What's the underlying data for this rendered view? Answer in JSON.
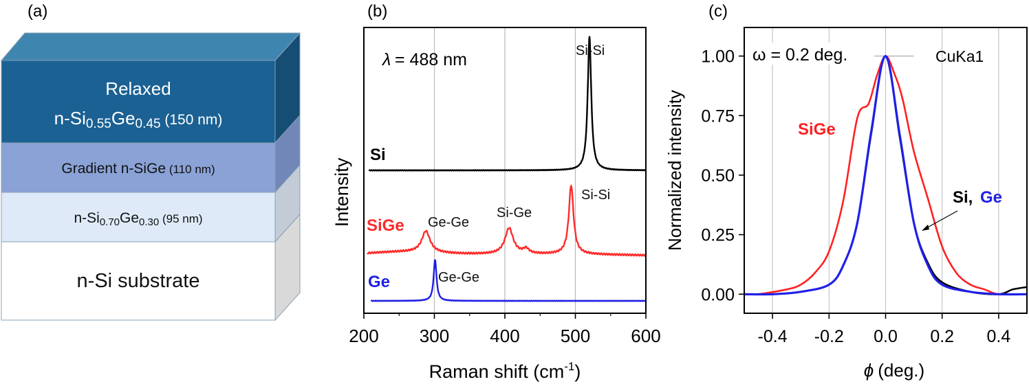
{
  "panel_a": {
    "label": "(a)",
    "layers": [
      {
        "line1": "Relaxed",
        "line2_parts": [
          {
            "t": "n-Si",
            "s": false
          },
          {
            "t": "0.55",
            "s": true
          },
          {
            "t": "Ge",
            "s": false
          },
          {
            "t": "0.45",
            "s": true
          },
          {
            "t": " (150 nm)",
            "s": false,
            "small": true
          }
        ],
        "front": "#1b6193",
        "side": "#164d75",
        "text_color": "#ffffff"
      },
      {
        "parts": [
          {
            "t": "Gradient n-SiGe",
            "s": false
          },
          {
            "t": " (110 nm)",
            "s": false,
            "small": true
          }
        ],
        "front": "#8aa2d6",
        "side": "#7187b8",
        "text_color": "#111111"
      },
      {
        "parts": [
          {
            "t": "n-Si",
            "s": false
          },
          {
            "t": "0.70",
            "s": true
          },
          {
            "t": "Ge",
            "s": false
          },
          {
            "t": "0.30",
            "s": true
          },
          {
            "t": " (95 nm)",
            "s": false,
            "small": true
          }
        ],
        "front": "#deeaf7",
        "side": "#c3ccd6",
        "text_color": "#111111"
      },
      {
        "parts": [
          {
            "t": "n-Si substrate",
            "s": false
          }
        ],
        "front": "#ffffff",
        "side": "#d9d9d9",
        "text_color": "#111111"
      }
    ],
    "top_color": "#3e86b0"
  },
  "panel_b": {
    "label": "(b)",
    "wavelength_note": "= 488 nm",
    "lambda": "λ",
    "ylabel": "Intensity",
    "xlabel": "Raman shift (cm",
    "xlabel_sup": "-1",
    "xlabel_end": ")",
    "chart_data": {
      "type": "line",
      "xlim": [
        200,
        600
      ],
      "x_ticks": [
        200,
        300,
        400,
        500,
        600
      ],
      "grid_x": [
        300,
        400,
        500
      ],
      "series": [
        {
          "name": "Si",
          "color": "#000000",
          "baseline": 0.92,
          "peaks": [
            {
              "x": 520,
              "h": 1.0,
              "w": 3
            }
          ],
          "annotations": [
            {
              "text": "Si-Si",
              "x": 520
            }
          ]
        },
        {
          "name": "SiGe",
          "color": "#ff2a2a",
          "baseline": 0.15,
          "peaks": [
            {
              "x": 288,
              "h": 0.18,
              "w": 7
            },
            {
              "x": 406,
              "h": 0.22,
              "w": 7
            },
            {
              "x": 430,
              "h": 0.04,
              "w": 5
            },
            {
              "x": 494,
              "h": 0.58,
              "w": 4
            }
          ],
          "annotations": [
            {
              "text": "Ge-Ge",
              "x": 300
            },
            {
              "text": "Si-Ge",
              "x": 406
            },
            {
              "text": "Si-Si",
              "x": 497
            }
          ]
        },
        {
          "name": "Ge",
          "color": "#1f1fe6",
          "baseline": 0.0,
          "peaks": [
            {
              "x": 301,
              "h": 0.37,
              "w": 2.5
            }
          ],
          "annotations": [
            {
              "text": "Ge-Ge",
              "x": 301
            }
          ]
        }
      ]
    }
  },
  "panel_c": {
    "label": "(c)",
    "omega_note": "ω = 0.2 deg.",
    "source_note": "CuKa1",
    "ylabel": "Normalized intensity",
    "xlabel": "(deg.)",
    "phi": "ϕ",
    "sige_label": "SiGe",
    "si_label": "Si,",
    "ge_label": "Ge",
    "chart_data": {
      "type": "line",
      "xlim": [
        -0.5,
        0.5
      ],
      "ylim": [
        -0.08,
        1.12
      ],
      "x_ticks": [
        -0.4,
        -0.2,
        0.0,
        0.2,
        0.4
      ],
      "y_ticks": [
        0.0,
        0.25,
        0.5,
        0.75,
        1.0
      ],
      "y_tick_labels": [
        "0.00",
        "0.25",
        "0.50",
        "0.75",
        "1.00"
      ],
      "series": [
        {
          "name": "Si",
          "color": "#000000",
          "x": [
            -0.5,
            -0.4,
            -0.3,
            -0.2,
            -0.15,
            -0.1,
            -0.05,
            0.0,
            0.05,
            0.1,
            0.15,
            0.2,
            0.3,
            0.4,
            0.45,
            0.5
          ],
          "y": [
            0.0,
            0.0,
            0.01,
            0.04,
            0.12,
            0.3,
            0.68,
            1.0,
            0.66,
            0.3,
            0.13,
            0.05,
            0.01,
            0.0,
            0.02,
            0.03
          ]
        },
        {
          "name": "Ge",
          "color": "#2020e8",
          "x": [
            -0.5,
            -0.4,
            -0.3,
            -0.2,
            -0.15,
            -0.1,
            -0.05,
            0.0,
            0.05,
            0.1,
            0.15,
            0.2,
            0.3,
            0.4,
            0.5
          ],
          "y": [
            0.0,
            0.0,
            0.01,
            0.04,
            0.12,
            0.3,
            0.69,
            1.0,
            0.67,
            0.3,
            0.12,
            0.04,
            0.01,
            0.0,
            0.0
          ]
        },
        {
          "name": "SiGe",
          "color": "#ff2020",
          "x": [
            -0.5,
            -0.45,
            -0.35,
            -0.3,
            -0.25,
            -0.2,
            -0.15,
            -0.1,
            -0.06,
            -0.03,
            0.0,
            0.03,
            0.06,
            0.1,
            0.15,
            0.2,
            0.25,
            0.3,
            0.35,
            0.4,
            0.5
          ],
          "y": [
            0.0,
            0.0,
            0.02,
            0.04,
            0.09,
            0.18,
            0.39,
            0.74,
            0.8,
            0.92,
            1.0,
            0.93,
            0.82,
            0.6,
            0.4,
            0.2,
            0.09,
            0.04,
            0.02,
            0.0,
            0.0
          ]
        }
      ]
    }
  }
}
